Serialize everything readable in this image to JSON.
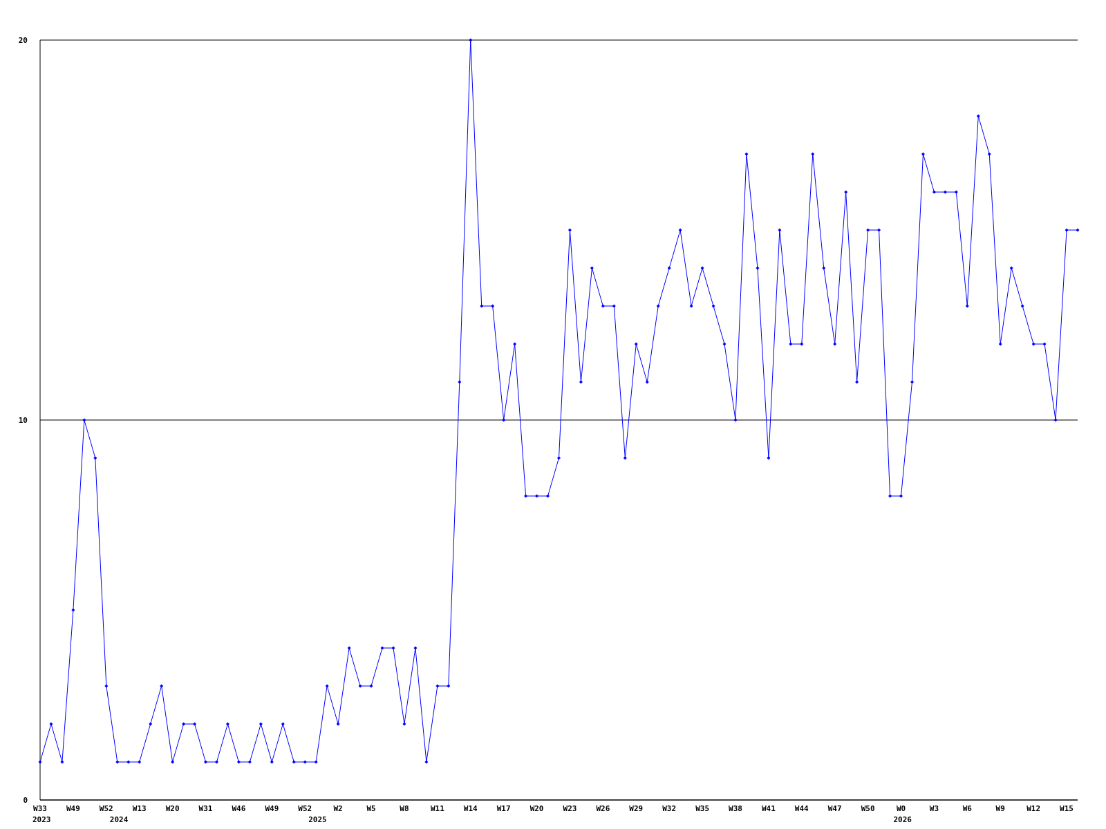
{
  "chart_data": {
    "type": "line",
    "categories": [
      "W33\n2023",
      null,
      null,
      "W49",
      null,
      null,
      "W52",
      "\n2024",
      null,
      "W13",
      null,
      null,
      "W20",
      null,
      null,
      "W31",
      null,
      null,
      "W46",
      null,
      null,
      "W49",
      null,
      null,
      "W52",
      "\n2025",
      null,
      "W2",
      null,
      null,
      "W5",
      null,
      null,
      "W8",
      null,
      null,
      "W11",
      null,
      null,
      "W14",
      null,
      null,
      "W17",
      null,
      null,
      "W20",
      null,
      null,
      "W23",
      null,
      null,
      "W26",
      null,
      null,
      "W29",
      null,
      null,
      "W32",
      null,
      null,
      "W35",
      null,
      null,
      "W38",
      null,
      null,
      "W41",
      null,
      null,
      "W44",
      null,
      null,
      "W47",
      null,
      null,
      "W50",
      null,
      null,
      "W0\n2026",
      null,
      null,
      "W3",
      null,
      null,
      "W6",
      null,
      null,
      "W9",
      null,
      null,
      "W12",
      null,
      null,
      "W15",
      null
    ],
    "series": [
      {
        "color": "#0000ff",
        "values": [
          1,
          2,
          1,
          5,
          10,
          9,
          3,
          1,
          1,
          1,
          2,
          3,
          1,
          2,
          2,
          1,
          1,
          2,
          1,
          1,
          2,
          1,
          2,
          1,
          1,
          1,
          3,
          2,
          4,
          3,
          3,
          4,
          4,
          2,
          4,
          1,
          3,
          3,
          11,
          20,
          13,
          13,
          10,
          12,
          8,
          8,
          8,
          9,
          15,
          11,
          14,
          13,
          13,
          9,
          12,
          11,
          13,
          14,
          15,
          13,
          14,
          13,
          12,
          10,
          17,
          14,
          9,
          15,
          12,
          12,
          17,
          14,
          12,
          16,
          11,
          15,
          15,
          8,
          8,
          11,
          17,
          16,
          16,
          16,
          13,
          18,
          17,
          12,
          14,
          13,
          12,
          12,
          10,
          15,
          15
        ]
      }
    ],
    "ylim": [
      0,
      20
    ],
    "yticks": [
      0,
      10,
      20
    ],
    "grid": "y",
    "marker": "diamond"
  }
}
